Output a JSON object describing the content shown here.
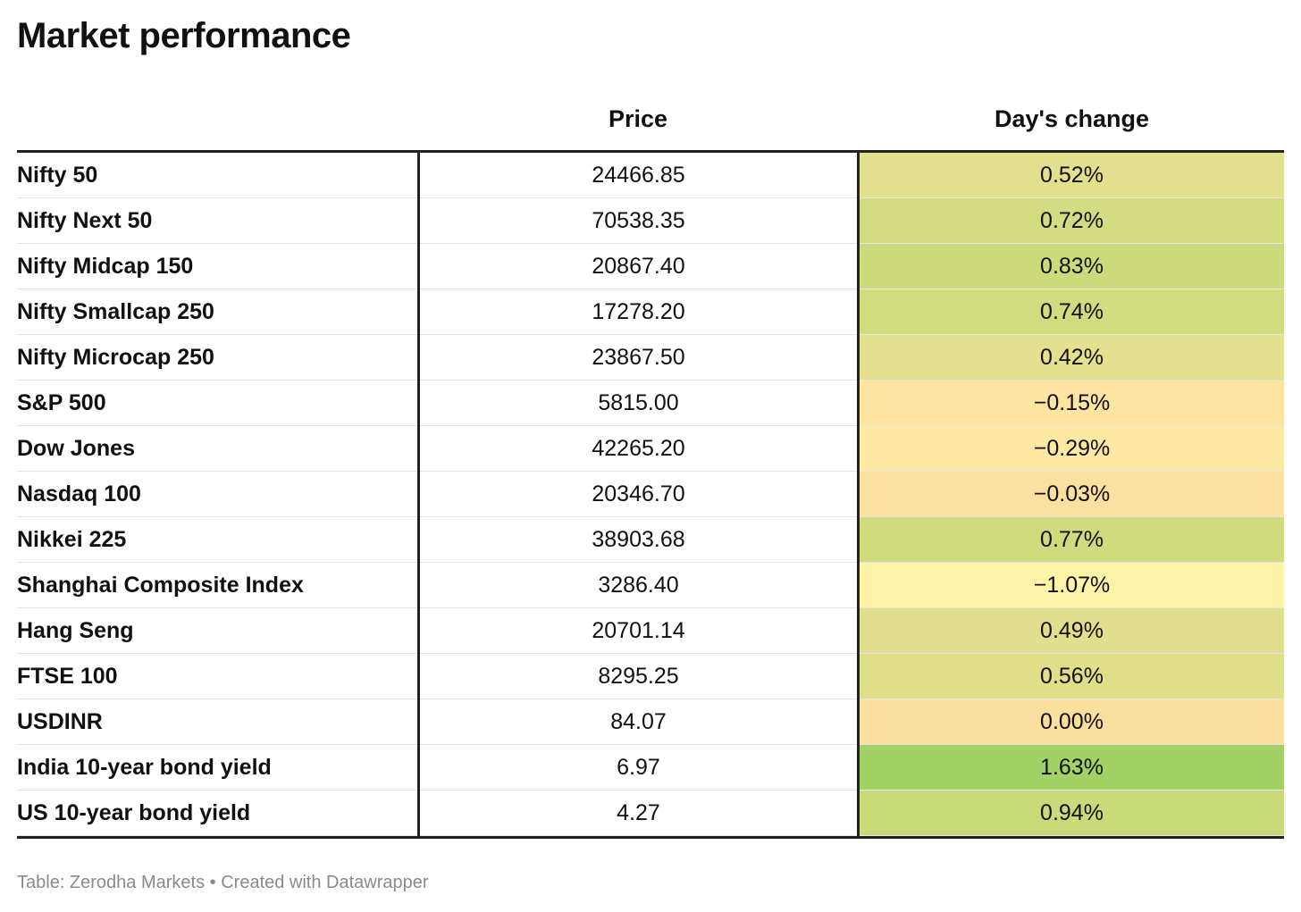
{
  "header": {
    "title": "Market performance"
  },
  "table": {
    "columns": [
      "Price",
      "Day's change"
    ],
    "rows": [
      {
        "name": "Nifty 50",
        "price": "24466.85",
        "change": "0.52%",
        "color": "#e2e08c"
      },
      {
        "name": "Nifty Next 50",
        "price": "70538.35",
        "change": "0.72%",
        "color": "#d3dc81"
      },
      {
        "name": "Nifty Midcap 150",
        "price": "20867.40",
        "change": "0.83%",
        "color": "#ccda7b"
      },
      {
        "name": "Nifty Smallcap 250",
        "price": "17278.20",
        "change": "0.74%",
        "color": "#d1dc7f"
      },
      {
        "name": "Nifty Microcap 250",
        "price": "23867.50",
        "change": "0.42%",
        "color": "#e5e08e"
      },
      {
        "name": "S&P 500",
        "price": "5815.00",
        "change": "−0.15%",
        "color": "#fde4a1"
      },
      {
        "name": "Dow Jones",
        "price": "42265.20",
        "change": "−0.29%",
        "color": "#fee9a2"
      },
      {
        "name": "Nasdaq 100",
        "price": "20346.70",
        "change": "−0.03%",
        "color": "#fce0a0"
      },
      {
        "name": "Nikkei 225",
        "price": "38903.68",
        "change": "0.77%",
        "color": "#cfdb7d"
      },
      {
        "name": "Shanghai Composite Index",
        "price": "3286.40",
        "change": "−1.07%",
        "color": "#fff3a7"
      },
      {
        "name": "Hang Seng",
        "price": "20701.14",
        "change": "0.49%",
        "color": "#e1df8b"
      },
      {
        "name": "FTSE 100",
        "price": "8295.25",
        "change": "0.56%",
        "color": "#dedf88"
      },
      {
        "name": "USDINR",
        "price": "84.07",
        "change": "0.00%",
        "color": "#fbdf9f"
      },
      {
        "name": "India 10-year bond yield",
        "price": "6.97",
        "change": "1.63%",
        "color": "#a2d165"
      },
      {
        "name": "US 10-year bond yield",
        "price": "4.27",
        "change": "0.94%",
        "color": "#c9da79"
      }
    ]
  },
  "footer": {
    "source": "Table: Zerodha Markets • Created with Datawrapper"
  }
}
